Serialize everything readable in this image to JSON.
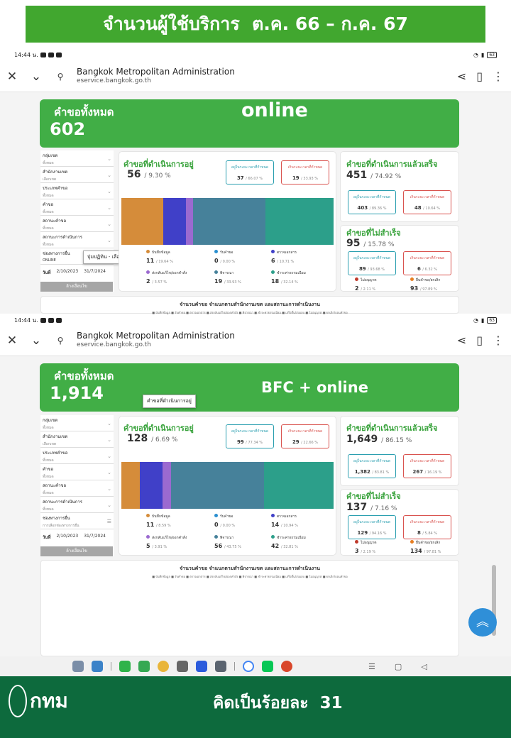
{
  "banner": {
    "title": "จำนวนผู้ใช้บริการ  ต.ค. 66 – ก.ค. 67"
  },
  "status": {
    "time": "14:44 น.",
    "battery": "63"
  },
  "browser": {
    "title": "Bangkok Metropolitan Administration",
    "url": "eservice.bangkok.go.th"
  },
  "filters": {
    "labels": [
      "กลุ่มเขต",
      "สำนักงานเขต",
      "ประเภทคำขอ",
      "คำขอ",
      "สถานะคำขอ",
      "สถานะการดำเนินการ",
      "ช่องทางการยื่น"
    ],
    "values": [
      "ทั้งหมด",
      "เลือกเขต",
      "ทั้งหมด",
      "ทั้งหมด",
      "ทั้งหมด",
      "ทั้งหมด"
    ],
    "channel_value_1": "ONLINE",
    "channel_placeholder_2": "การเลือกช่องทางการยื่น",
    "date_label": "วันที่",
    "date_from": "2/10/2023",
    "date_to": "31/7/2024",
    "search_label": "ล้างเงื่อนไข"
  },
  "labels": {
    "total": "คำขอทั้งหมด",
    "in_progress": "คำขอที่ดำเนินการอยู่",
    "done": "คำขอที่ดำเนินการแล้วเสร็จ",
    "failed": "คำขอที่ไม่สำเร็จ",
    "within": "อยู่ในระยะเวลาที่กำหนด",
    "over": "เกินระยะเวลาที่กำหนด",
    "leg_receive": "รับคำขอ",
    "leg_check": "ตรวจเอกสาร",
    "leg_send": "ส่งกลับแก้ไข/ออกคำสั่ง",
    "leg_consider": "พิจารณา",
    "leg_pay": "ชำระค่าธรรมเนียม",
    "leg_record": "บันทึกข้อมูล",
    "not_allowed": "ไม่อนุญาต",
    "cancelled": "ยื่นคำขอ/ยกเลิก",
    "bottom_title": "จำนวนคำขอ จำแนกตามสำนักงานเขต และสถานะการดำเนินงาน",
    "bottom_legend": "■ บันทึกข้อมูล ■ รับคำขอ ■ ตรวจเอกสาร ■ ส่งกลับแก้ไข/ออกคำสั่ง ■ พิจารณา ■ ชำระค่าธรรมเนียม ■ เสร็จสิ้น/ส่งมอบ ■ ไม่อนุญาต ■ ยกเลิก/ถอนคำขอ"
  },
  "shot1": {
    "overlay": "online",
    "total": "602",
    "tooltip": "ปุ่มปฏิทิน - เลือกวันที่",
    "in_progress": {
      "num": "56",
      "pct": "/ 9.30 %",
      "within": "37",
      "within_pct": "/ 66.07 %",
      "over": "19",
      "over_pct": "/ 33.93 %"
    },
    "legend": [
      {
        "v": "11",
        "p": "/ 19.64 %"
      },
      {
        "v": "0",
        "p": "/ 0.00 %"
      },
      {
        "v": "6",
        "p": "/ 10.71 %"
      },
      {
        "v": "2",
        "p": "/ 3.57 %"
      },
      {
        "v": "19",
        "p": "/ 33.93 %"
      },
      {
        "v": "18",
        "p": "/ 32.14 %"
      }
    ],
    "done": {
      "num": "451",
      "pct": "/ 74.92 %",
      "within": "403",
      "within_pct": "/ 89.36 %",
      "over": "48",
      "over_pct": "/ 10.64 %"
    },
    "failed": {
      "num": "95",
      "pct": "/ 15.78 %",
      "within": "89",
      "within_pct": "/ 93.68 %",
      "over": "6",
      "over_pct": "/ 6.32 %",
      "na": "2",
      "na_pct": "/ 2.11 %",
      "cancel": "93",
      "cancel_pct": "/ 97.89 %"
    }
  },
  "shot2": {
    "overlay": "BFC + online",
    "total": "1,914",
    "tooltip": "คำขอที่ดำเนินการอยู่",
    "in_progress": {
      "num": "128",
      "pct": "/ 6.69 %",
      "within": "99",
      "within_pct": "/ 77.34 %",
      "over": "29",
      "over_pct": "/ 22.66 %"
    },
    "legend": [
      {
        "v": "11",
        "p": "/ 8.59 %"
      },
      {
        "v": "0",
        "p": "/ 0.00 %"
      },
      {
        "v": "14",
        "p": "/ 10.94 %"
      },
      {
        "v": "5",
        "p": "/ 3.91 %"
      },
      {
        "v": "56",
        "p": "/ 43.75 %"
      },
      {
        "v": "42",
        "p": "/ 32.81 %"
      }
    ],
    "done": {
      "num": "1,649",
      "pct": "/ 86.15 %",
      "within": "1,382",
      "within_pct": "/ 83.81 %",
      "over": "267",
      "over_pct": "/ 16.19 %"
    },
    "failed": {
      "num": "137",
      "pct": "/ 7.16 %",
      "within": "129",
      "within_pct": "/ 94.16 %",
      "over": "8",
      "over_pct": "/ 5.84 %",
      "na": "3",
      "na_pct": "/ 2.19 %",
      "cancel": "134",
      "cancel_pct": "/ 97.81 %"
    }
  },
  "footer": {
    "logo": "กทม",
    "text": "คิดเป็นร้อยละ  31"
  },
  "colors": {
    "green": "#41ae46",
    "dark_green": "#0d6a3d",
    "seg_record": "#d58c3a",
    "seg_check": "#4040c8",
    "seg_send": "#9b6ad0",
    "seg_consider": "#46819a",
    "seg_pay": "#2c9f8a"
  }
}
